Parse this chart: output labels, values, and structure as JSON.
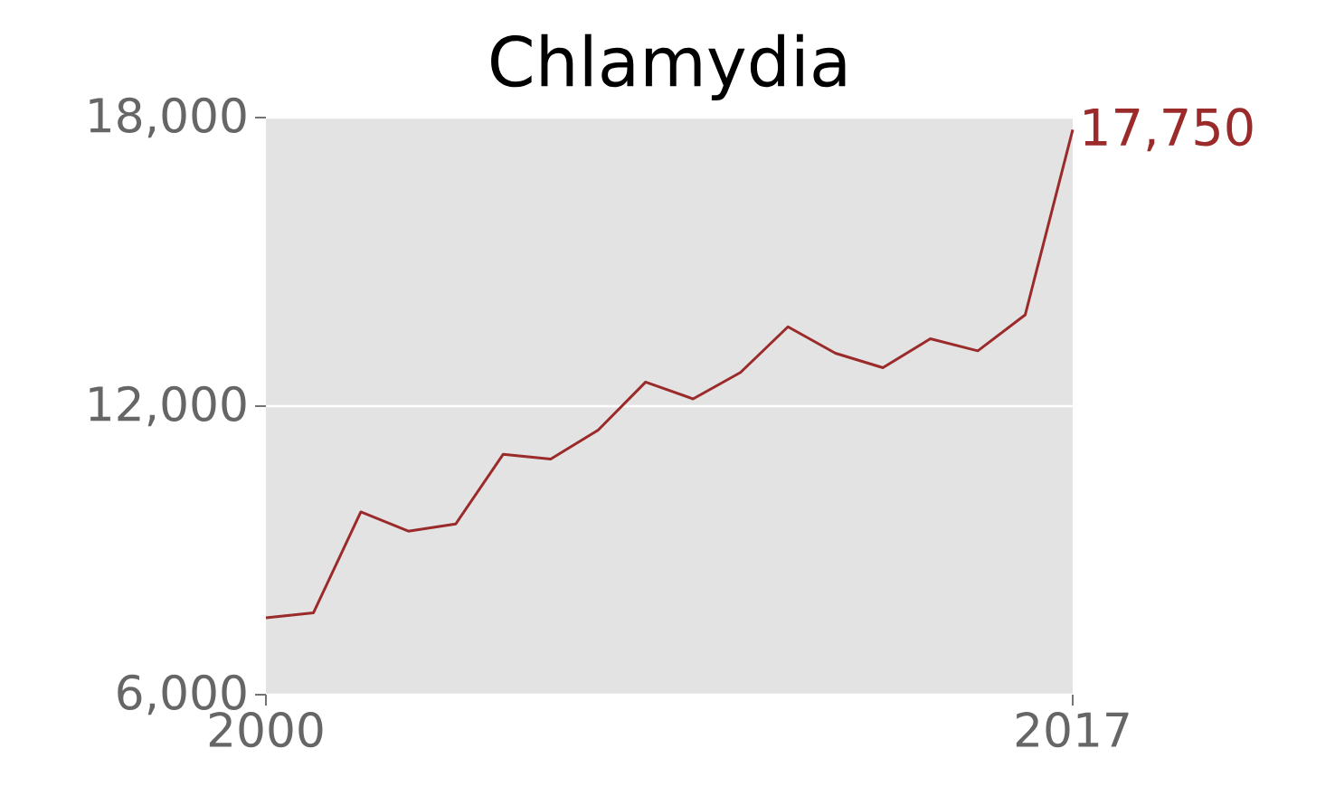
{
  "chart_data": {
    "type": "line",
    "title": "Chlamydia",
    "x": [
      2000,
      2001,
      2002,
      2003,
      2004,
      2005,
      2006,
      2007,
      2008,
      2009,
      2010,
      2011,
      2012,
      2013,
      2014,
      2015,
      2016,
      2017
    ],
    "series": [
      {
        "color": "#9b2a2a",
        "values": [
          7600,
          7700,
          9800,
          9400,
          9550,
          11000,
          10900,
          11500,
          12500,
          12150,
          12700,
          13650,
          13100,
          12800,
          13400,
          13150,
          13900,
          17750
        ]
      }
    ],
    "xlim": [
      2000,
      2017
    ],
    "xticks": [
      2000,
      2017
    ],
    "ylim": [
      6000,
      18000
    ],
    "yticks": [
      {
        "value": 6000,
        "label": "6,000"
      },
      {
        "value": 12000,
        "label": "12,000"
      },
      {
        "value": 18000,
        "label": "18,000"
      }
    ],
    "grid": "y",
    "marker": "none",
    "line_style": "solid",
    "annotations": [
      {
        "text": "17,750",
        "x": 2017,
        "y": 17750
      }
    ]
  }
}
